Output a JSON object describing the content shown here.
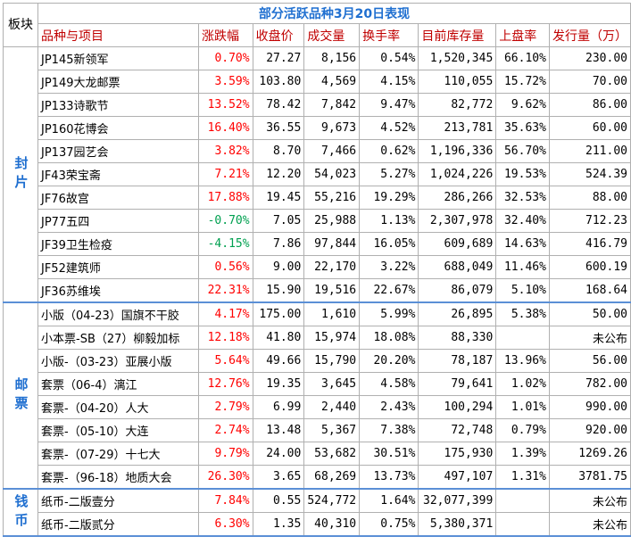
{
  "title": "部分活跃品种3月20日表现",
  "corner_label": "板块",
  "headers": [
    "品种与项目",
    "涨跌幅",
    "收盘价",
    "成交量",
    "换手率",
    "目前库存量",
    "上盘率",
    "发行量（万）"
  ],
  "sections": [
    {
      "label": "封片",
      "rows": [
        {
          "name": "JP145新领军",
          "change": "0.70%",
          "dir": "up",
          "close": "27.27",
          "volume": "8,156",
          "turnover": "0.54%",
          "stock": "1,520,345",
          "rate": "66.10%",
          "issue": "230.00"
        },
        {
          "name": "JP149大龙邮票",
          "change": "3.59%",
          "dir": "up",
          "close": "103.80",
          "volume": "4,569",
          "turnover": "4.15%",
          "stock": "110,055",
          "rate": "15.72%",
          "issue": "70.00"
        },
        {
          "name": "JP133诗歌节",
          "change": "13.52%",
          "dir": "up",
          "close": "78.42",
          "volume": "7,842",
          "turnover": "9.47%",
          "stock": "82,772",
          "rate": "9.62%",
          "issue": "86.00"
        },
        {
          "name": "JP160花博会",
          "change": "16.40%",
          "dir": "up",
          "close": "36.55",
          "volume": "9,673",
          "turnover": "4.52%",
          "stock": "213,781",
          "rate": "35.63%",
          "issue": "60.00"
        },
        {
          "name": "JP137园艺会",
          "change": "3.82%",
          "dir": "up",
          "close": "8.70",
          "volume": "7,466",
          "turnover": "0.62%",
          "stock": "1,196,336",
          "rate": "56.70%",
          "issue": "211.00"
        },
        {
          "name": "JF43荣宝斋",
          "change": "7.21%",
          "dir": "up",
          "close": "12.20",
          "volume": "54,023",
          "turnover": "5.27%",
          "stock": "1,024,226",
          "rate": "19.53%",
          "issue": "524.39"
        },
        {
          "name": "JF76故宫",
          "change": "17.88%",
          "dir": "up",
          "close": "19.45",
          "volume": "55,216",
          "turnover": "19.29%",
          "stock": "286,266",
          "rate": "32.53%",
          "issue": "88.00"
        },
        {
          "name": "JP77五四",
          "change": "-0.70%",
          "dir": "down",
          "close": "7.05",
          "volume": "25,988",
          "turnover": "1.13%",
          "stock": "2,307,978",
          "rate": "32.40%",
          "issue": "712.23"
        },
        {
          "name": "JF39卫生检疫",
          "change": "-4.15%",
          "dir": "down",
          "close": "7.86",
          "volume": "97,844",
          "turnover": "16.05%",
          "stock": "609,689",
          "rate": "14.63%",
          "issue": "416.79"
        },
        {
          "name": "JF52建筑师",
          "change": "0.56%",
          "dir": "up",
          "close": "9.00",
          "volume": "22,170",
          "turnover": "3.22%",
          "stock": "688,049",
          "rate": "11.46%",
          "issue": "600.19"
        },
        {
          "name": "JF36苏维埃",
          "change": "22.31%",
          "dir": "up",
          "close": "15.90",
          "volume": "19,516",
          "turnover": "22.67%",
          "stock": "86,079",
          "rate": "5.10%",
          "issue": "168.64"
        }
      ]
    },
    {
      "label": "邮票",
      "rows": [
        {
          "name": "小版（04-23）国旗不干胶",
          "change": "4.17%",
          "dir": "up",
          "close": "175.00",
          "volume": "1,610",
          "turnover": "5.99%",
          "stock": "26,895",
          "rate": "5.38%",
          "issue": "50.00"
        },
        {
          "name": "小本票-SB（27）柳毅加标",
          "change": "12.18%",
          "dir": "up",
          "close": "41.80",
          "volume": "15,974",
          "turnover": "18.08%",
          "stock": "88,330",
          "rate": "",
          "issue": "未公布"
        },
        {
          "name": "小版-（03-23）亚展小版",
          "change": "5.64%",
          "dir": "up",
          "close": "49.66",
          "volume": "15,790",
          "turnover": "20.20%",
          "stock": "78,187",
          "rate": "13.96%",
          "issue": "56.00"
        },
        {
          "name": "套票（06-4）漓江",
          "change": "12.76%",
          "dir": "up",
          "close": "19.35",
          "volume": "3,645",
          "turnover": "4.58%",
          "stock": "79,641",
          "rate": "1.02%",
          "issue": "782.00"
        },
        {
          "name": "套票-（04-20）人大",
          "change": "2.79%",
          "dir": "up",
          "close": "6.99",
          "volume": "2,440",
          "turnover": "2.43%",
          "stock": "100,294",
          "rate": "1.01%",
          "issue": "990.00"
        },
        {
          "name": "套票-（05-10）大连",
          "change": "2.74%",
          "dir": "up",
          "close": "13.48",
          "volume": "5,367",
          "turnover": "7.38%",
          "stock": "72,748",
          "rate": "0.79%",
          "issue": "920.00"
        },
        {
          "name": "套票-（07-29）十七大",
          "change": "9.79%",
          "dir": "up",
          "close": "24.00",
          "volume": "53,682",
          "turnover": "30.51%",
          "stock": "175,930",
          "rate": "1.39%",
          "issue": "1269.26"
        },
        {
          "name": "套票-（96-18）地质大会",
          "change": "26.30%",
          "dir": "up",
          "close": "3.65",
          "volume": "68,269",
          "turnover": "13.73%",
          "stock": "497,107",
          "rate": "1.31%",
          "issue": "3781.75"
        }
      ]
    },
    {
      "label": "钱币",
      "rows": [
        {
          "name": "纸币-二版壹分",
          "change": "7.84%",
          "dir": "up",
          "close": "0.55",
          "volume": "524,772",
          "turnover": "1.64%",
          "stock": "32,077,399",
          "rate": "",
          "issue": "未公布"
        },
        {
          "name": "纸币-二版贰分",
          "change": "6.30%",
          "dir": "up",
          "close": "1.35",
          "volume": "40,310",
          "turnover": "0.75%",
          "stock": "5,380,371",
          "rate": "",
          "issue": "未公布"
        }
      ]
    }
  ]
}
